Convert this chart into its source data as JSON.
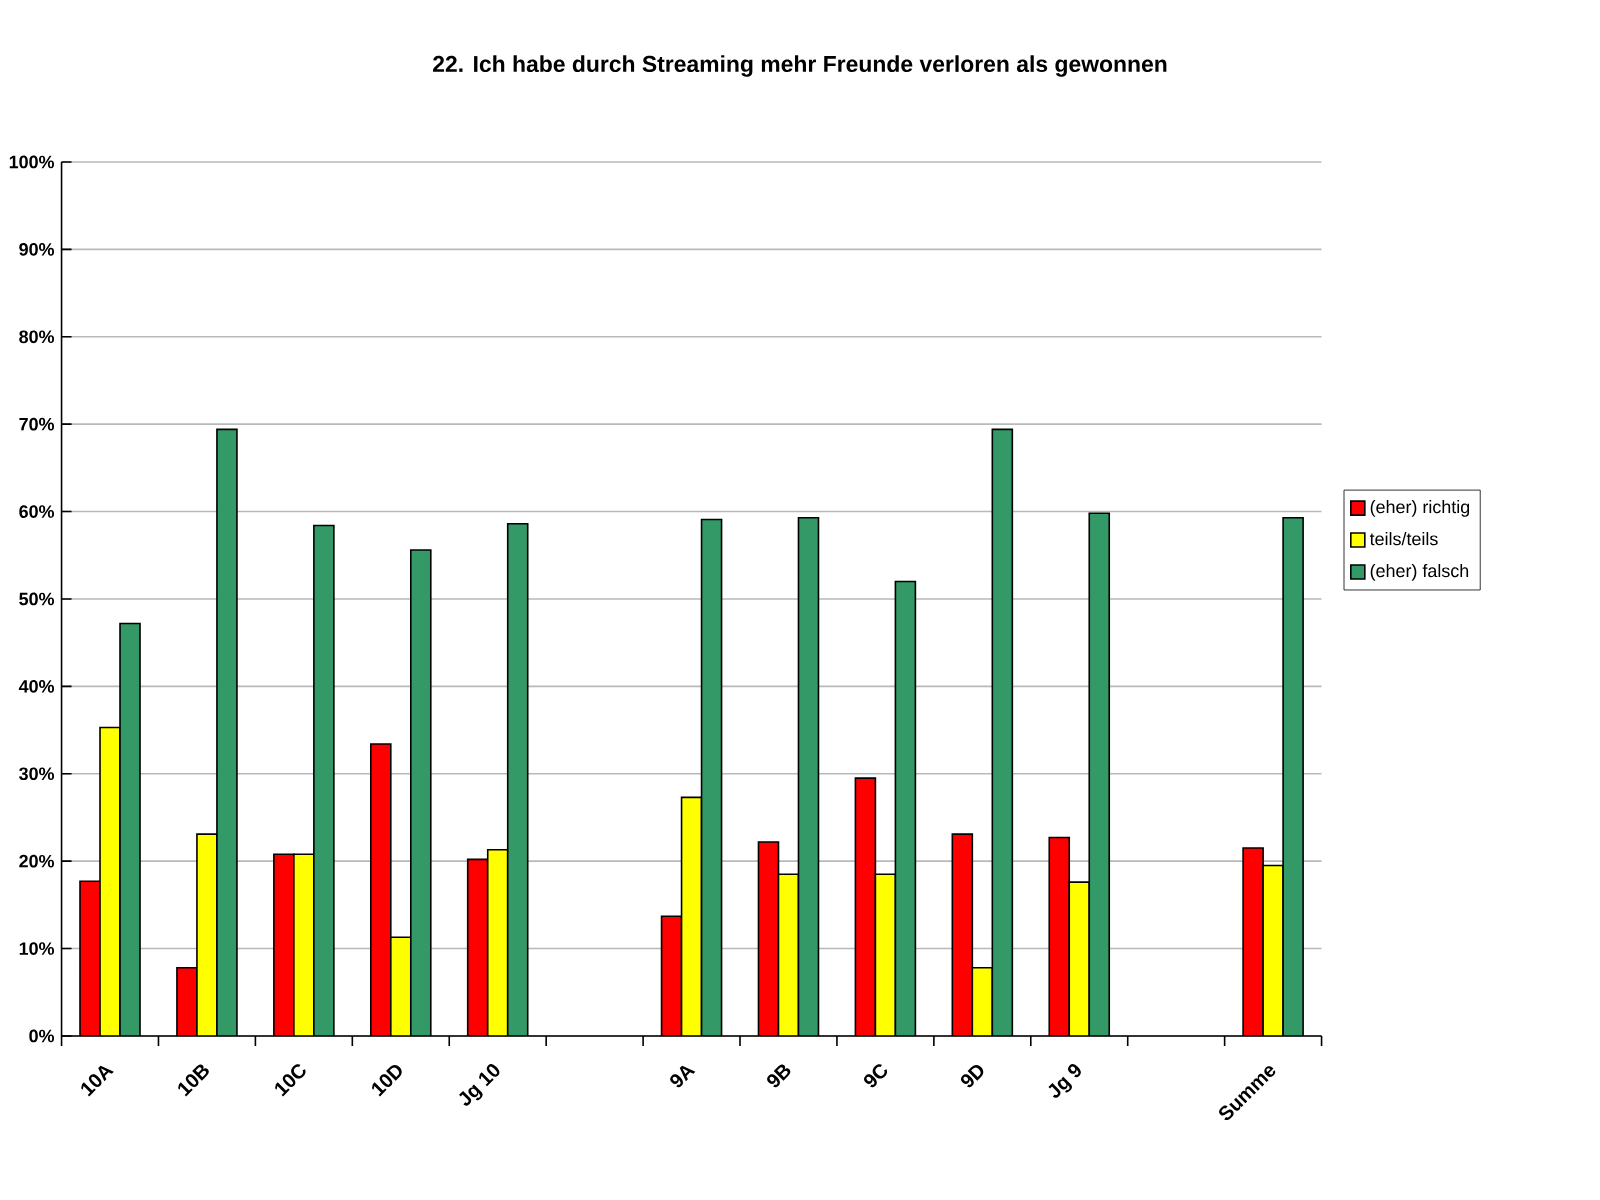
{
  "chart_data": {
    "type": "bar",
    "title": "22. Ich habe durch Streaming mehr Freunde verloren als gewonnen",
    "categories": [
      "10A",
      "10B",
      "10C",
      "10D",
      "Jg 10",
      null,
      "9A",
      "9B",
      "9C",
      "9D",
      "Jg 9",
      null,
      "Summe"
    ],
    "series": [
      {
        "name": "(eher) richtig",
        "color": "#ff0000",
        "values": [
          17.7,
          7.8,
          20.8,
          33.4,
          20.2,
          null,
          13.7,
          22.2,
          29.5,
          23.1,
          22.7,
          null,
          21.5
        ]
      },
      {
        "name": "teils/teils",
        "color": "#ffff00",
        "values": [
          35.3,
          23.1,
          20.8,
          11.3,
          21.3,
          null,
          27.3,
          18.5,
          18.5,
          7.8,
          17.6,
          null,
          19.5
        ]
      },
      {
        "name": "(eher) falsch",
        "color": "#339966",
        "values": [
          47.2,
          69.4,
          58.4,
          55.6,
          58.6,
          null,
          59.1,
          59.3,
          52.0,
          69.4,
          59.8,
          null,
          59.3
        ]
      }
    ],
    "ylim": [
      0,
      100
    ],
    "yticks": [
      {
        "value": 0,
        "label": "0%"
      },
      {
        "value": 10,
        "label": "10%"
      },
      {
        "value": 20,
        "label": "20%"
      },
      {
        "value": 30,
        "label": "30%"
      },
      {
        "value": 40,
        "label": "40%"
      },
      {
        "value": 50,
        "label": "50%"
      },
      {
        "value": 60,
        "label": "60%"
      },
      {
        "value": 70,
        "label": "70%"
      },
      {
        "value": 80,
        "label": "80%"
      },
      {
        "value": 90,
        "label": "90%"
      },
      {
        "value": 100,
        "label": "100%"
      }
    ],
    "grid": "y",
    "legend": "right"
  }
}
